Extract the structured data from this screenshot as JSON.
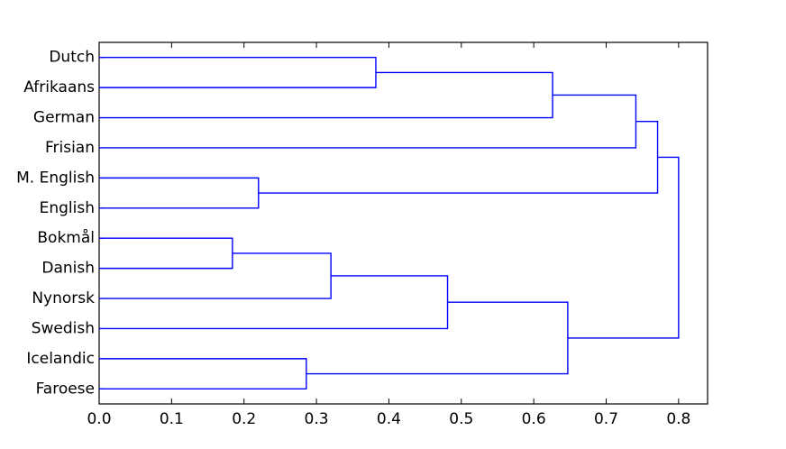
{
  "chart_data": {
    "type": "dendrogram",
    "orientation": "right",
    "categories": [
      "Dutch",
      "Afrikaans",
      "German",
      "Frisian",
      "M. English",
      "English",
      "Bokmål",
      "Danish",
      "Nynorsk",
      "Swedish",
      "Icelandic",
      "Faroese"
    ],
    "merges": [
      {
        "left": 0,
        "right": 1,
        "height": 0.382
      },
      {
        "left": 12,
        "right": 2,
        "height": 0.626
      },
      {
        "left": 13,
        "right": 3,
        "height": 0.741
      },
      {
        "left": 4,
        "right": 5,
        "height": 0.22
      },
      {
        "left": 14,
        "right": 15,
        "height": 0.771
      },
      {
        "left": 6,
        "right": 7,
        "height": 0.184
      },
      {
        "left": 17,
        "right": 8,
        "height": 0.32
      },
      {
        "left": 18,
        "right": 9,
        "height": 0.481
      },
      {
        "left": 10,
        "right": 11,
        "height": 0.286
      },
      {
        "left": 19,
        "right": 20,
        "height": 0.647
      },
      {
        "left": 16,
        "right": 21,
        "height": 0.8
      }
    ],
    "color": "#0000ff",
    "xlim": [
      0,
      0.84
    ],
    "xticks": [
      {
        "value": 0,
        "label": "0.0"
      },
      0.1,
      0.2,
      0.3,
      0.4,
      0.5,
      0.6,
      0.7,
      0.8
    ]
  }
}
